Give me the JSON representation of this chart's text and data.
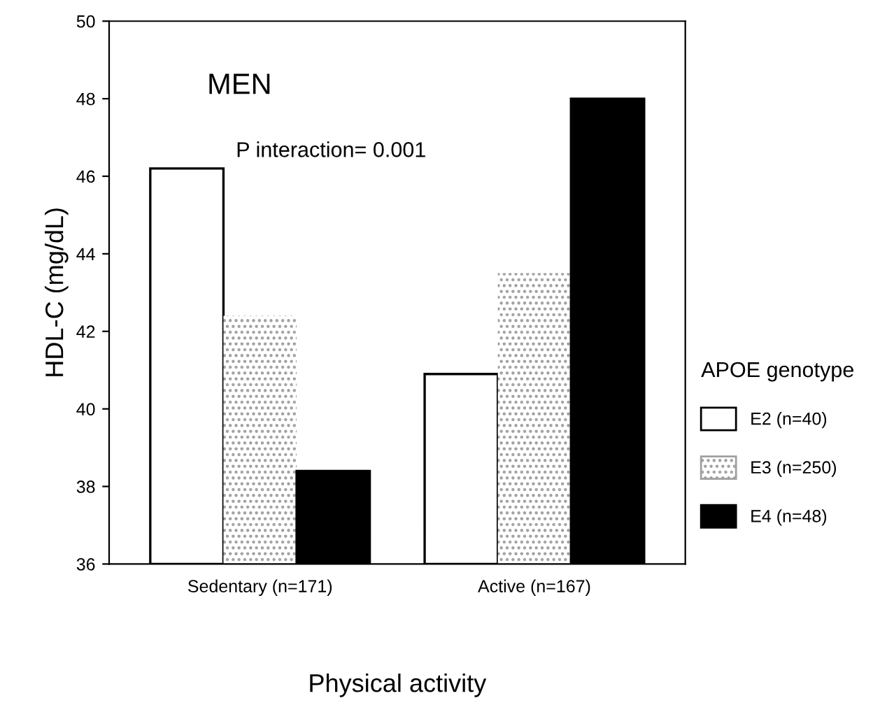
{
  "chart_data": {
    "type": "bar",
    "xlabel": "Physical activity",
    "ylabel": "HDL-C (mg/dL)",
    "legend_title": "APOE genotype",
    "categories": [
      "Sedentary (n=171)",
      "Active (n=167)"
    ],
    "series": [
      {
        "name": "E2 (n=40)",
        "color": "#ffffff",
        "values": [
          46.2,
          40.9
        ]
      },
      {
        "name": "E3 (n=250)",
        "color": "#a0a0a0",
        "values": [
          42.4,
          43.5
        ]
      },
      {
        "name": "E4 (n=48)",
        "color": "#000000",
        "values": [
          38.4,
          48.0
        ]
      }
    ],
    "ylim": [
      36,
      50
    ],
    "yticks": [
      36,
      38,
      40,
      42,
      44,
      46,
      48,
      50
    ],
    "grid": false,
    "legend": "right",
    "annotations": [
      "MEN",
      "P interaction= 0.001"
    ]
  }
}
